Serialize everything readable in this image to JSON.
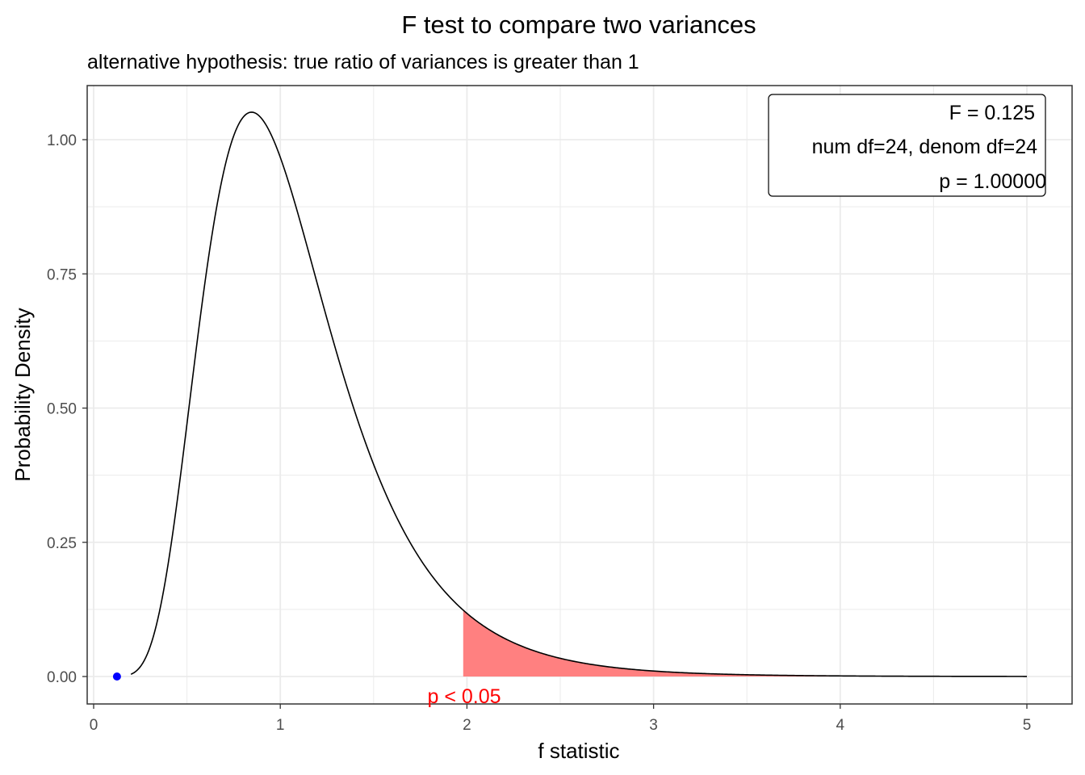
{
  "chart_data": {
    "type": "area",
    "title": "F test to compare two variances",
    "subtitle": "alternative hypothesis: true ratio of variances is greater than 1",
    "xlabel": "f statistic",
    "ylabel": "Probability Density",
    "xlim": [
      0,
      5
    ],
    "ylim": [
      0,
      1.05
    ],
    "x_ticks": [
      0,
      1,
      2,
      3,
      4,
      5
    ],
    "x_tick_labels": [
      "0",
      "1",
      "2",
      "3",
      "4",
      "5"
    ],
    "y_ticks": [
      0,
      0.25,
      0.5,
      0.75,
      1.0
    ],
    "y_tick_labels": [
      "0.00",
      "0.25",
      "0.50",
      "0.75",
      "1.00"
    ],
    "grid": true,
    "density_curve": {
      "df1": 24,
      "df2": 24,
      "x_start": 0.2,
      "x_end": 5.0,
      "peak": [
        0.84,
        1.05
      ]
    },
    "shaded_region": {
      "x_start": 1.98,
      "x_end": 5.0,
      "color": "#ff8080",
      "label": "p < 0.05",
      "label_x": 1.98,
      "label_color": "#ff0000"
    },
    "observed_point": {
      "x": 0.125,
      "y": 0,
      "color": "#0000ff"
    },
    "annotation_box": {
      "lines": [
        "F = 0.125",
        "num df=24, denom df=24",
        "p = 1.00000"
      ]
    },
    "colors": {
      "curve": "#000000",
      "grid": "#ebebeb",
      "panel_border": "#333333"
    }
  }
}
